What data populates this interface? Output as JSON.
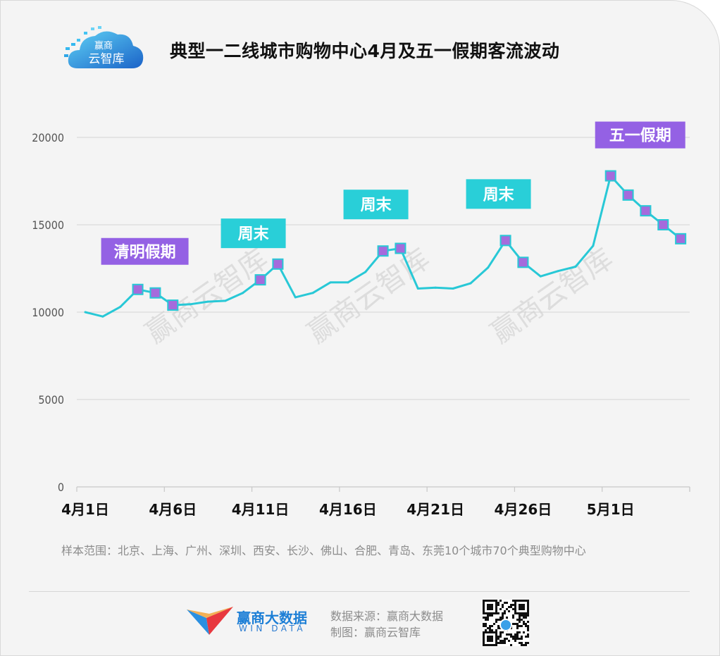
{
  "header": {
    "logo_text_1": "赢商",
    "logo_text_2": "云智库",
    "title": "典型一二线城市购物中心4月及五一假期客流波动"
  },
  "chart_data": {
    "type": "line",
    "title": "典型一二线城市购物中心4月及五一假期客流波动",
    "xlabel": "",
    "ylabel": "",
    "ylim": [
      0,
      20000
    ],
    "yticks": [
      0,
      5000,
      10000,
      15000,
      20000
    ],
    "xtick_labels": [
      "4月1日",
      "4月6日",
      "4月11日",
      "4月16日",
      "4月21日",
      "4月26日",
      "5月1日"
    ],
    "grid": true,
    "series": [
      {
        "color": "#28c8d6",
        "x": [
          "4月1日",
          "4月2日",
          "4月3日",
          "4月4日",
          "4月5日",
          "4月6日",
          "4月7日",
          "4月8日",
          "4月9日",
          "4月10日",
          "4月11日",
          "4月12日",
          "4月13日",
          "4月14日",
          "4月15日",
          "4月16日",
          "4月17日",
          "4月18日",
          "4月19日",
          "4月20日",
          "4月21日",
          "4月22日",
          "4月23日",
          "4月24日",
          "4月25日",
          "4月26日",
          "4月27日",
          "4月28日",
          "4月29日",
          "4月30日",
          "5月1日",
          "5月2日",
          "5月3日",
          "5月4日",
          "5月5日"
        ],
        "values": [
          10000,
          9750,
          10300,
          11300,
          11100,
          10400,
          10450,
          10600,
          10650,
          11100,
          11850,
          12750,
          10850,
          11100,
          11700,
          11700,
          12300,
          13500,
          13650,
          11350,
          11400,
          11350,
          11650,
          12550,
          14100,
          12850,
          12050,
          12350,
          12600,
          13800,
          17800,
          16700,
          15800,
          15000,
          14200
        ],
        "marked": [
          3,
          4,
          5,
          10,
          11,
          17,
          18,
          24,
          25,
          30,
          31,
          32,
          33,
          34
        ]
      }
    ],
    "annotations": [
      {
        "text": "清明假期",
        "x": "4月4日",
        "color": "#9461e4"
      },
      {
        "text": "周末",
        "x": "4月11日",
        "color": "#29cfd8"
      },
      {
        "text": "周末",
        "x": "4月18日",
        "color": "#29cfd8"
      },
      {
        "text": "周末",
        "x": "4月25日",
        "color": "#29cfd8"
      },
      {
        "text": "五一假期",
        "x": "5月1日",
        "color": "#9461e4"
      }
    ],
    "watermark": "赢商云智库",
    "marker_color": "#a56bdc"
  },
  "scope_note": "样本范围：北京、上海、广州、深圳、西安、长沙、佛山、合肥、青岛、东莞10个城市70个典型购物中心",
  "footer": {
    "brand_cn": "赢商大数据",
    "brand_en": "WIN DATA",
    "source": "数据来源：赢商大数据",
    "maker": "制图：赢商云智库"
  }
}
